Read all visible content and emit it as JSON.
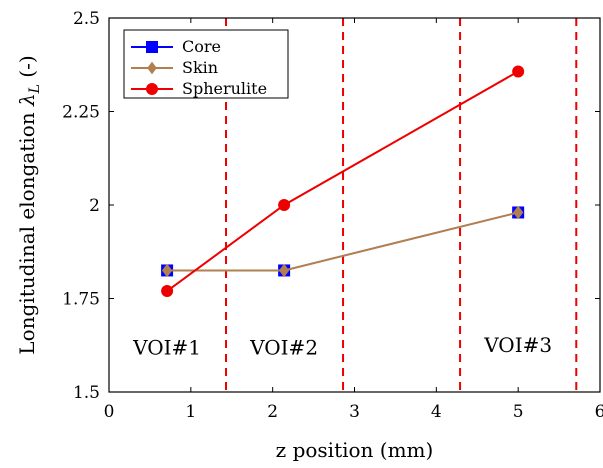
{
  "chart_data": {
    "type": "line",
    "xlabel": "z position (mm)",
    "ylabel": "Longitudinal elongation λ_L (-)",
    "xlim": [
      0,
      6
    ],
    "ylim": [
      1.5,
      2.5
    ],
    "x_ticks": [
      "0",
      "1",
      "2",
      "3",
      "4",
      "5",
      "6"
    ],
    "y_ticks": [
      "1.5",
      "1.75",
      "2",
      "2.25",
      "2.5"
    ],
    "grid": false,
    "legend_position": "top-left",
    "series": [
      {
        "name": "Core",
        "color": "#0000ff",
        "marker": "square",
        "x": [
          0.71,
          2.14,
          5.0
        ],
        "y": [
          1.825,
          1.825,
          1.98
        ]
      },
      {
        "name": "Skin",
        "color": "#b08050",
        "marker": "diamond",
        "x": [
          0.71,
          2.14,
          5.0
        ],
        "y": [
          1.825,
          1.825,
          1.98
        ]
      },
      {
        "name": "Spherulite",
        "color": "#ee0000",
        "marker": "circle",
        "x": [
          0.71,
          2.14,
          5.0
        ],
        "y": [
          1.77,
          2.0,
          2.357
        ]
      }
    ],
    "vertical_lines": {
      "color": "#ee0000",
      "style": "dashed",
      "x": [
        1.43,
        2.86,
        4.29,
        5.71
      ]
    },
    "regions": [
      {
        "label": "VOI#1",
        "x": 0.71,
        "y": 1.6
      },
      {
        "label": "VOI#2",
        "x": 2.14,
        "y": 1.6
      },
      {
        "label": "VOI#3",
        "x": 5.0,
        "y": 1.607
      }
    ]
  }
}
